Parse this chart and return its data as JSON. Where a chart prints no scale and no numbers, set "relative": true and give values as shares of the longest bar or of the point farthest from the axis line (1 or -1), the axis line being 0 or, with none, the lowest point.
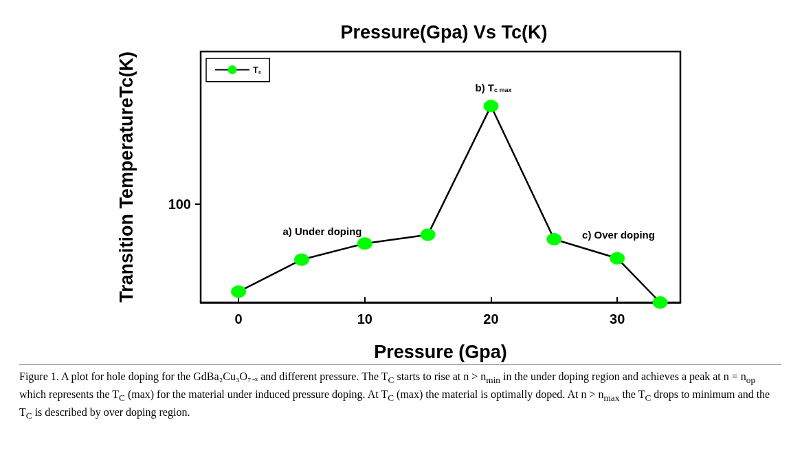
{
  "chart_data": {
    "type": "line",
    "title": "Pressure(Gpa) Vs Tc(K)",
    "xlabel": "Pressure (Gpa)",
    "ylabel": "Transition TemperatureTc(K)",
    "x": [
      0,
      5,
      10,
      15,
      20,
      25,
      30,
      33.4
    ],
    "relative": true,
    "series": [
      {
        "name": "T$_{c}$",
        "color": "#00ff00",
        "values": [
          0.055,
          0.218,
          0.3,
          0.345,
          1,
          0.322,
          0.225,
          0
        ]
      }
    ],
    "xlim": [
      -3,
      35
    ],
    "xticks": [
      0,
      10,
      20,
      30
    ],
    "grid": false,
    "legend": "top left",
    "marker": "circle",
    "line_style": "solid",
    "annotations": [
      "100",
      "a) Under doping",
      "b) T$_{c max}$",
      "c) Over doping",
      "Figure 1. A plot for hole doping for the GdBa₂Cu₃O₇₋ₓ and different pressure. The T$_{C}$ starts to rise at n > n$_{min}$ in the under doping region and achieves a peak at n = n$_{op}$ which represents the T$_{C}$ (max) for the material under induced pressure doping. At T$_{C}$ (max) the material is optimally doped. At n > n$_{max}$ the T$_{C}$ drops to minimum and the T$_{C}$ is described by over doping region."
    ]
  }
}
